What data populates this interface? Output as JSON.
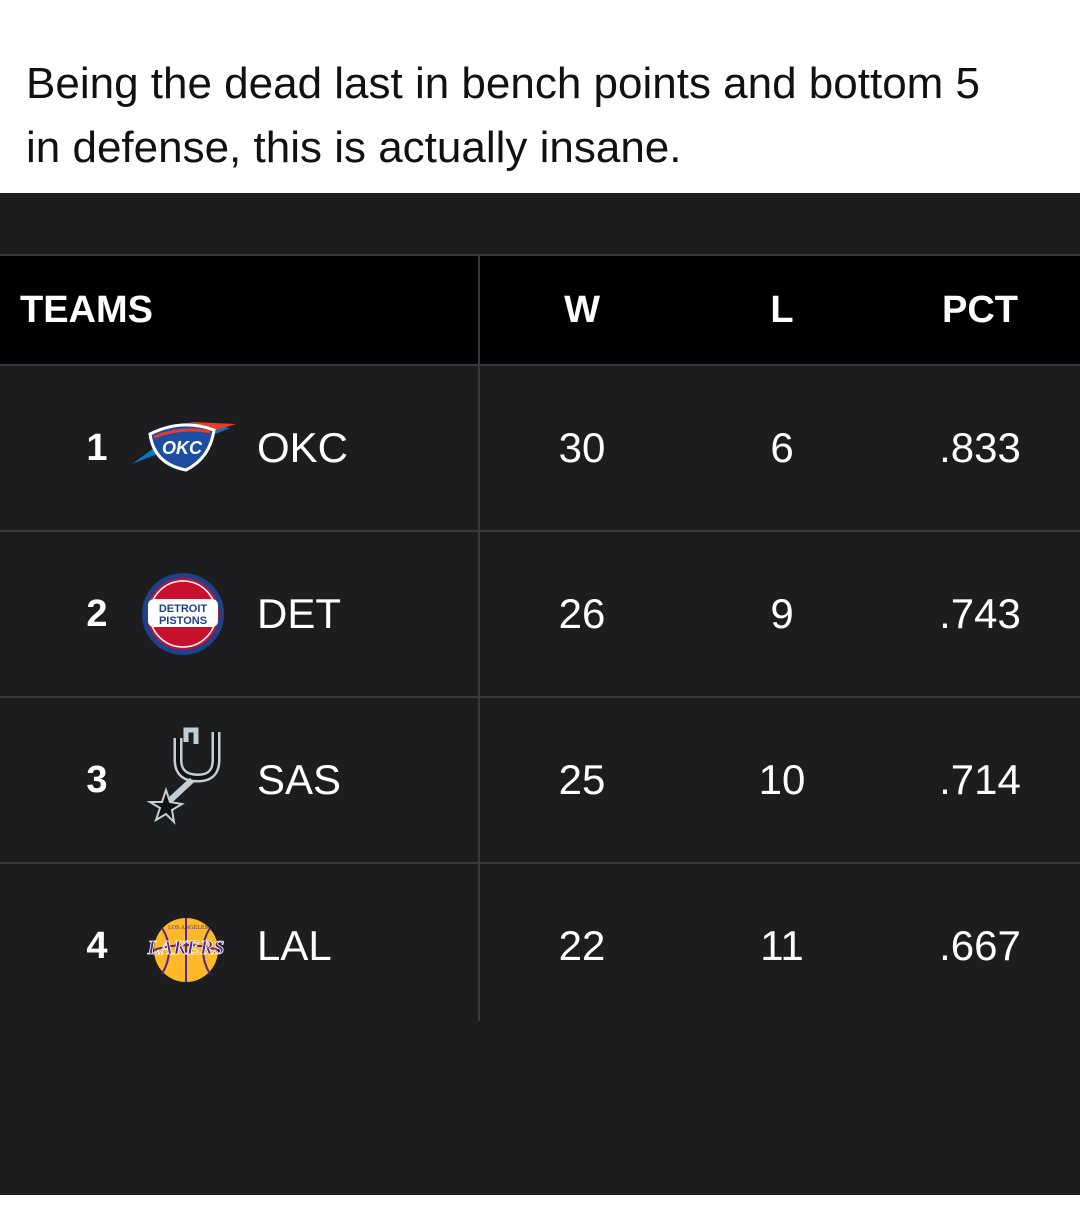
{
  "caption": {
    "line1": "Being the dead last in bench points and bottom 5",
    "line2": "in defense, this is actually insane."
  },
  "table": {
    "headers": {
      "teams": "TEAMS",
      "w": "W",
      "l": "L",
      "pct": "PCT"
    },
    "rows": [
      {
        "rank": "1",
        "abbr": "OKC",
        "w": "30",
        "l": "6",
        "pct": ".833",
        "logo": "okc-logo",
        "logo_text": "OKC"
      },
      {
        "rank": "2",
        "abbr": "DET",
        "w": "26",
        "l": "9",
        "pct": ".743",
        "logo": "pistons-logo",
        "logo_text_1": "DETROIT",
        "logo_text_2": "PISTONS"
      },
      {
        "rank": "3",
        "abbr": "SAS",
        "w": "25",
        "l": "10",
        "pct": ".714",
        "logo": "spurs-logo"
      },
      {
        "rank": "4",
        "abbr": "LAL",
        "w": "22",
        "l": "11",
        "pct": ".667",
        "logo": "lakers-logo",
        "logo_text_1": "LOS ANGELES",
        "logo_text_2": "LAKERS"
      }
    ]
  },
  "colors": {
    "panel_bg": "#1d1d20",
    "header_bg": "#000000",
    "divider": "#3a3a3e",
    "text": "#ffffff",
    "okc_blue": "#007ac1",
    "okc_orange": "#ef3b24",
    "pistons_red": "#c8102e",
    "pistons_blue": "#1d428a",
    "lakers_purple": "#552583",
    "lakers_gold": "#fdb927"
  }
}
